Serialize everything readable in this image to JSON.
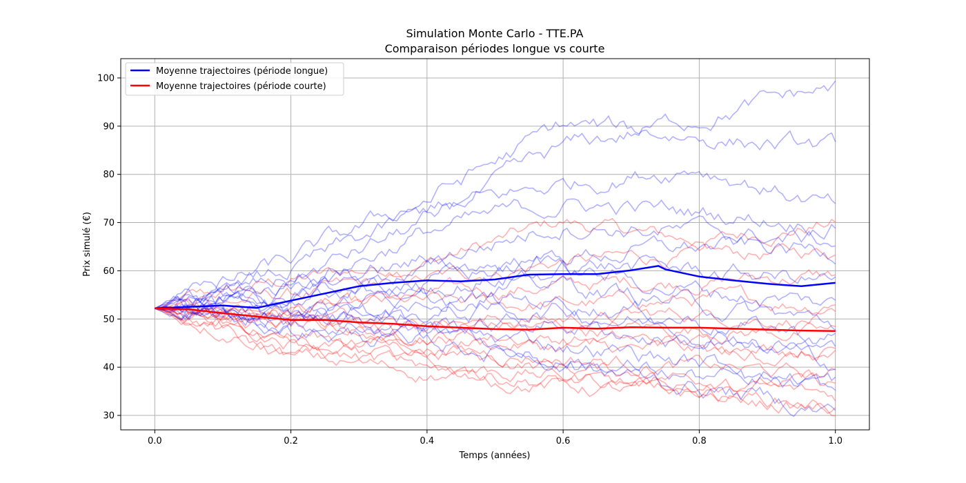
{
  "chart_data": {
    "type": "line",
    "title": [
      "Simulation Monte Carlo - TTE.PA",
      "Comparaison périodes longue vs courte"
    ],
    "xlabel": "Temps (années)",
    "ylabel": "Prix simulé (€)",
    "xlim": [
      -0.05,
      1.05
    ],
    "ylim": [
      27,
      104
    ],
    "xticks": [
      0.0,
      0.2,
      0.4,
      0.6,
      0.8,
      1.0
    ],
    "xtick_labels": [
      "0.0",
      "0.2",
      "0.4",
      "0.6",
      "0.8",
      "1.0"
    ],
    "yticks": [
      30,
      40,
      50,
      60,
      70,
      80,
      90,
      100
    ],
    "ytick_labels": [
      "30",
      "40",
      "50",
      "60",
      "70",
      "80",
      "90",
      "100"
    ],
    "grid": true,
    "legend": {
      "placement": "top-left",
      "entries": [
        "Moyenne trajectoires (période longue)",
        "Moyenne trajectoires (période courte)"
      ]
    },
    "colors": {
      "long": "#0000ff",
      "short": "#ff0000",
      "grid": "#b0b0b0"
    },
    "start_price": 52.2,
    "series": [
      {
        "name": "Moyenne trajectoires (période longue)",
        "color": "#0000ff",
        "x": [
          0.0,
          0.05,
          0.1,
          0.15,
          0.2,
          0.25,
          0.3,
          0.35,
          0.4,
          0.45,
          0.5,
          0.55,
          0.6,
          0.65,
          0.7,
          0.74,
          0.75,
          0.8,
          0.85,
          0.9,
          0.95,
          1.0
        ],
        "values": [
          52.2,
          52.5,
          52.8,
          52.3,
          53.8,
          55.3,
          56.8,
          57.5,
          58.0,
          57.8,
          58.2,
          59.2,
          59.3,
          59.3,
          60.1,
          61.0,
          60.3,
          58.8,
          58.0,
          57.3,
          56.8,
          57.5
        ]
      },
      {
        "name": "Moyenne trajectoires (période courte)",
        "color": "#ff0000",
        "x": [
          0.0,
          0.05,
          0.1,
          0.15,
          0.2,
          0.25,
          0.3,
          0.35,
          0.4,
          0.45,
          0.5,
          0.55,
          0.6,
          0.65,
          0.7,
          0.75,
          0.8,
          0.85,
          0.9,
          0.95,
          1.0
        ],
        "values": [
          52.2,
          52.0,
          51.2,
          50.5,
          49.8,
          49.8,
          49.3,
          49.0,
          48.5,
          48.2,
          47.9,
          47.8,
          48.2,
          48.0,
          48.3,
          48.2,
          48.2,
          48.0,
          47.8,
          47.6,
          47.5
        ]
      }
    ],
    "trajectories_long": [
      {
        "x": [
          0,
          0.2,
          0.4,
          0.6,
          0.8,
          1.0
        ],
        "values": [
          52.2,
          58,
          70,
          85,
          92,
          98
        ]
      },
      {
        "x": [
          0,
          0.2,
          0.4,
          0.6,
          0.8,
          1.0
        ],
        "values": [
          52.2,
          62,
          75,
          90,
          88,
          85
        ]
      },
      {
        "x": [
          0,
          0.2,
          0.4,
          0.6,
          0.8,
          1.0
        ],
        "values": [
          52.2,
          60,
          72,
          78,
          82,
          73
        ]
      },
      {
        "x": [
          0,
          0.2,
          0.4,
          0.6,
          0.8,
          1.0
        ],
        "values": [
          52.2,
          57,
          68,
          74,
          72,
          70
        ]
      },
      {
        "x": [
          0,
          0.2,
          0.4,
          0.6,
          0.8,
          1.0
        ],
        "values": [
          52.2,
          55,
          62,
          70,
          68,
          66
        ]
      },
      {
        "x": [
          0,
          0.2,
          0.4,
          0.6,
          0.8,
          1.0
        ],
        "values": [
          52.2,
          56,
          60,
          63,
          65,
          64
        ]
      },
      {
        "x": [
          0,
          0.2,
          0.4,
          0.6,
          0.8,
          1.0
        ],
        "values": [
          52.2,
          54,
          58,
          62,
          60,
          58
        ]
      },
      {
        "x": [
          0,
          0.2,
          0.4,
          0.6,
          0.8,
          1.0
        ],
        "values": [
          52.2,
          53,
          57,
          60,
          56,
          53
        ]
      },
      {
        "x": [
          0,
          0.2,
          0.4,
          0.6,
          0.8,
          1.0
        ],
        "values": [
          52.2,
          52,
          55,
          57,
          53,
          49
        ]
      },
      {
        "x": [
          0,
          0.2,
          0.4,
          0.6,
          0.8,
          1.0
        ],
        "values": [
          52.2,
          51,
          53,
          54,
          50,
          46
        ]
      },
      {
        "x": [
          0,
          0.2,
          0.4,
          0.6,
          0.8,
          1.0
        ],
        "values": [
          52.2,
          50,
          51,
          52,
          48,
          43
        ]
      },
      {
        "x": [
          0,
          0.2,
          0.4,
          0.6,
          0.8,
          1.0
        ],
        "values": [
          52.2,
          49,
          49,
          49,
          45,
          41
        ]
      },
      {
        "x": [
          0,
          0.2,
          0.4,
          0.6,
          0.8,
          1.0
        ],
        "values": [
          52.2,
          50,
          47,
          45,
          41,
          37
        ]
      },
      {
        "x": [
          0,
          0.2,
          0.4,
          0.6,
          0.8,
          1.0
        ],
        "values": [
          52.2,
          48,
          45,
          42,
          38,
          34
        ]
      },
      {
        "x": [
          0,
          0.2,
          0.4,
          0.6,
          0.8,
          1.0
        ],
        "values": [
          52.2,
          53,
          50,
          40,
          36,
          31
        ]
      }
    ],
    "trajectories_short": [
      {
        "x": [
          0,
          0.2,
          0.4,
          0.6,
          0.8,
          1.0
        ],
        "values": [
          52.2,
          58,
          62,
          70,
          66,
          70
        ]
      },
      {
        "x": [
          0,
          0.2,
          0.4,
          0.6,
          0.8,
          1.0
        ],
        "values": [
          52.2,
          55,
          58,
          62,
          63,
          64
        ]
      },
      {
        "x": [
          0,
          0.2,
          0.4,
          0.6,
          0.8,
          1.0
        ],
        "values": [
          52.2,
          53,
          55,
          57,
          58,
          59
        ]
      },
      {
        "x": [
          0,
          0.2,
          0.4,
          0.6,
          0.8,
          1.0
        ],
        "values": [
          52.2,
          52,
          53,
          53,
          54,
          53
        ]
      },
      {
        "x": [
          0,
          0.2,
          0.4,
          0.6,
          0.8,
          1.0
        ],
        "values": [
          52.2,
          51,
          50,
          50,
          51,
          50
        ]
      },
      {
        "x": [
          0,
          0.2,
          0.4,
          0.6,
          0.8,
          1.0
        ],
        "values": [
          52.2,
          50,
          49,
          48,
          48,
          47
        ]
      },
      {
        "x": [
          0,
          0.2,
          0.4,
          0.6,
          0.8,
          1.0
        ],
        "values": [
          52.2,
          49,
          47,
          46,
          45,
          44
        ]
      },
      {
        "x": [
          0,
          0.2,
          0.4,
          0.6,
          0.8,
          1.0
        ],
        "values": [
          52.2,
          48,
          46,
          44,
          43,
          42
        ]
      },
      {
        "x": [
          0,
          0.2,
          0.4,
          0.6,
          0.8,
          1.0
        ],
        "values": [
          52.2,
          47,
          44,
          42,
          40,
          38
        ]
      },
      {
        "x": [
          0,
          0.2,
          0.4,
          0.6,
          0.8,
          1.0
        ],
        "values": [
          52.2,
          46,
          43,
          40,
          38,
          36
        ]
      },
      {
        "x": [
          0,
          0.2,
          0.4,
          0.6,
          0.8,
          1.0
        ],
        "values": [
          52.2,
          45,
          41,
          38,
          36,
          34
        ]
      },
      {
        "x": [
          0,
          0.2,
          0.4,
          0.6,
          0.8,
          1.0
        ],
        "values": [
          52.2,
          44,
          40,
          37,
          35,
          32
        ]
      },
      {
        "x": [
          0,
          0.2,
          0.4,
          0.6,
          0.8,
          1.0
        ],
        "values": [
          52.2,
          42,
          39,
          36,
          34,
          31
        ]
      }
    ]
  }
}
